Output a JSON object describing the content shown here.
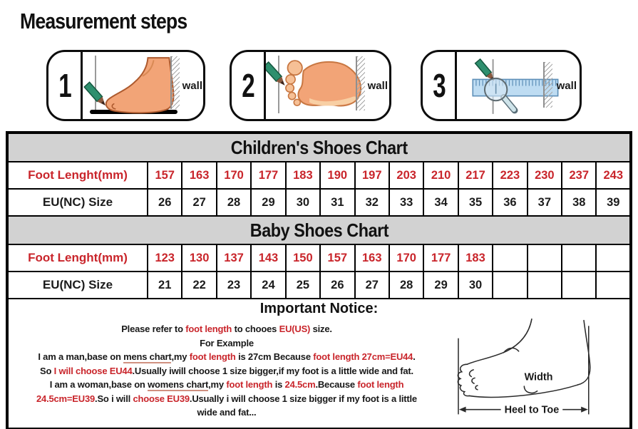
{
  "page": {
    "title": "Measurement steps"
  },
  "steps": [
    {
      "number": "1",
      "wall_label": "wall",
      "icon": "foot-side-profile"
    },
    {
      "number": "2",
      "wall_label": "wall",
      "icon": "foot-sole"
    },
    {
      "number": "3",
      "wall_label": "wall",
      "icon": "ruler-magnifier"
    }
  ],
  "charts": {
    "children": {
      "title": "Children's Shoes Chart",
      "foot_length_label": "Foot Lenght(mm)",
      "size_label": "EU(NC) Size",
      "foot_lengths": [
        "157",
        "163",
        "170",
        "177",
        "183",
        "190",
        "197",
        "203",
        "210",
        "217",
        "223",
        "230",
        "237",
        "243"
      ],
      "sizes": [
        "26",
        "27",
        "28",
        "29",
        "30",
        "31",
        "32",
        "33",
        "34",
        "35",
        "36",
        "37",
        "38",
        "39"
      ]
    },
    "baby": {
      "title": "Baby Shoes Chart",
      "foot_length_label": "Foot Lenght(mm)",
      "size_label": "EU(NC) Size",
      "foot_lengths": [
        "123",
        "130",
        "137",
        "143",
        "150",
        "157",
        "163",
        "170",
        "177",
        "183"
      ],
      "sizes": [
        "21",
        "22",
        "23",
        "24",
        "25",
        "26",
        "27",
        "28",
        "29",
        "30"
      ]
    }
  },
  "notice": {
    "heading": "Important Notice:",
    "lines": [
      [
        {
          "t": "Please refer to "
        },
        {
          "t": "foot length",
          "c": "red"
        },
        {
          "t": " to chooes "
        },
        {
          "t": "EU(US)",
          "c": "red"
        },
        {
          "t": " size."
        }
      ],
      [
        {
          "t": "For Example"
        }
      ],
      [
        {
          "t": "I am a man,base on "
        },
        {
          "t": "mens chart",
          "u": true
        },
        {
          "t": ",my "
        },
        {
          "t": "foot length",
          "c": "red"
        },
        {
          "t": " is 27cm Because "
        },
        {
          "t": "foot length 27cm=EU44",
          "c": "red"
        },
        {
          "t": "."
        }
      ],
      [
        {
          "t": "So "
        },
        {
          "t": "I will choose EU44",
          "c": "red"
        },
        {
          "t": ".Usually iwill choose 1 size bigger,if my foot is a little wide and fat."
        }
      ],
      [
        {
          "t": "I am a woman,base on "
        },
        {
          "t": "womens chart",
          "u": true
        },
        {
          "t": ",my "
        },
        {
          "t": "foot length",
          "c": "red"
        },
        {
          "t": " is "
        },
        {
          "t": "24.5cm",
          "c": "red"
        },
        {
          "t": ".Because "
        },
        {
          "t": "foot length",
          "c": "red"
        }
      ],
      [
        {
          "t": "24.5cm=EU39",
          "c": "red"
        },
        {
          "t": ".So i will "
        },
        {
          "t": "choose EU39",
          "c": "red"
        },
        {
          "t": ".Usually i will choose 1 size bigger if my foot is a little"
        }
      ],
      [
        {
          "t": "wide and fat..."
        }
      ]
    ]
  },
  "diagram": {
    "width_label": "Width",
    "heel_to_toe_label": "Heel to Toe"
  },
  "colors": {
    "accent_red": "#c9252b",
    "header_gray": "#d2d2d2",
    "pencil_green": "#2e8f6e",
    "ruler_blue": "#bedcf2",
    "skin": "#f2a477"
  }
}
